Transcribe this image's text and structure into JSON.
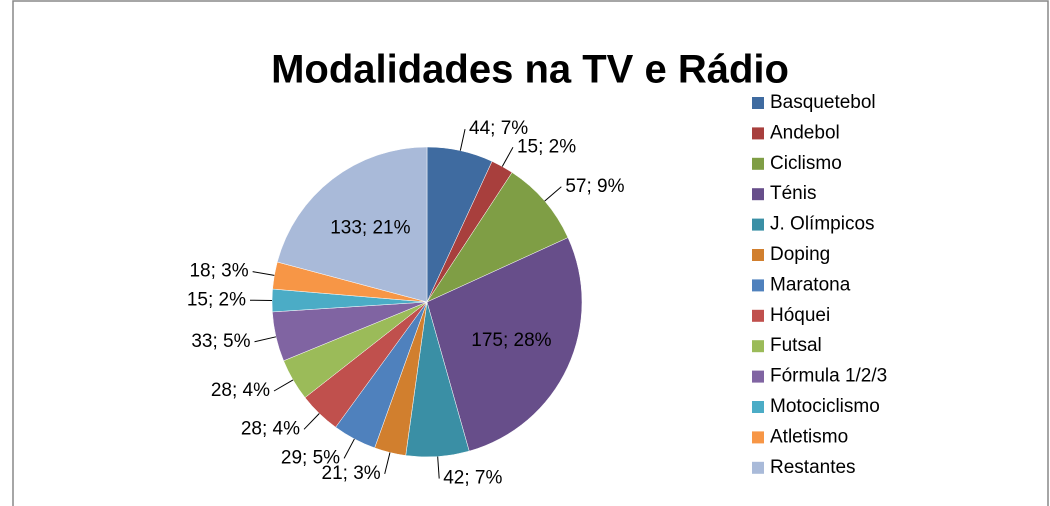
{
  "chart_data": {
    "type": "pie",
    "title": "Modalidades na TV e Rádio",
    "categories": [
      "Basquetebol",
      "Andebol",
      "Ciclismo",
      "Ténis",
      "J. Olímpicos",
      "Doping",
      "Maratona",
      "Hóquei",
      "Futsal",
      "Fórmula 1/2/3",
      "Motociclismo",
      "Atletismo",
      "Restantes"
    ],
    "values": [
      44,
      15,
      57,
      175,
      42,
      21,
      29,
      28,
      28,
      33,
      15,
      18,
      133
    ],
    "value_labels": [
      "44; 7%",
      "15; 2%",
      "57; 9%",
      "175; 28%",
      "42; 7%",
      "21; 3%",
      "29; 5%",
      "28; 4%",
      "28; 4%",
      "33; 5%",
      "15; 2%",
      "18; 3%",
      "133; 21%"
    ],
    "colors": [
      "#3F6BA0",
      "#A83F3D",
      "#7F9E45",
      "#674E8A",
      "#3A8FA5",
      "#D17F2E",
      "#4F81BD",
      "#C0504D",
      "#9BBB59",
      "#8064A2",
      "#4BACC6",
      "#F79646",
      "#A9BAD9"
    ],
    "legend": "right"
  }
}
